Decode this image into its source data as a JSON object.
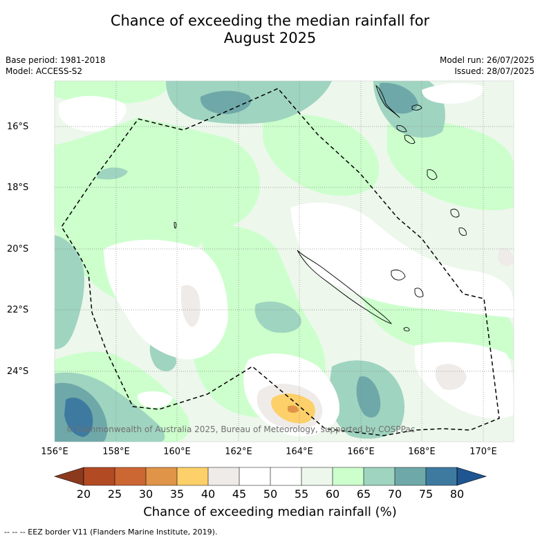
{
  "title_line1": "Chance of exceeding the median rainfall for",
  "title_line2": "August 2025",
  "meta": {
    "base_period": "Base period: 1981-2018",
    "model": "Model: ACCESS-S2",
    "model_run": "Model run: 26/07/2025",
    "issued": "Issued: 28/07/2025"
  },
  "copyright": "© Commonwealth of Australia 2025, Bureau of Meteorology, supported by COSPPac",
  "lat_labels": [
    "16°S",
    "18°S",
    "20°S",
    "22°S",
    "24°S"
  ],
  "lon_labels": [
    "156°E",
    "158°E",
    "160°E",
    "162°E",
    "164°E",
    "166°E",
    "168°E",
    "170°E"
  ],
  "colorbar": {
    "title": "Chance of exceeding median rainfall (%)",
    "ticks": [
      "20",
      "25",
      "30",
      "35",
      "40",
      "45",
      "50",
      "55",
      "60",
      "65",
      "70",
      "75",
      "80"
    ],
    "colors": [
      "#8b3a1e",
      "#b24a23",
      "#cc6633",
      "#e09448",
      "#fdd069",
      "#efebe8",
      "#ffffff",
      "#ffffff",
      "#edf7ec",
      "#ccffcc",
      "#9fd4c0",
      "#6fa8a8",
      "#3e7aa0",
      "#1f5590"
    ]
  },
  "legend_footnote": "--  --  -- EEZ border V11 (Flanders Marine Institute, 2019)."
}
